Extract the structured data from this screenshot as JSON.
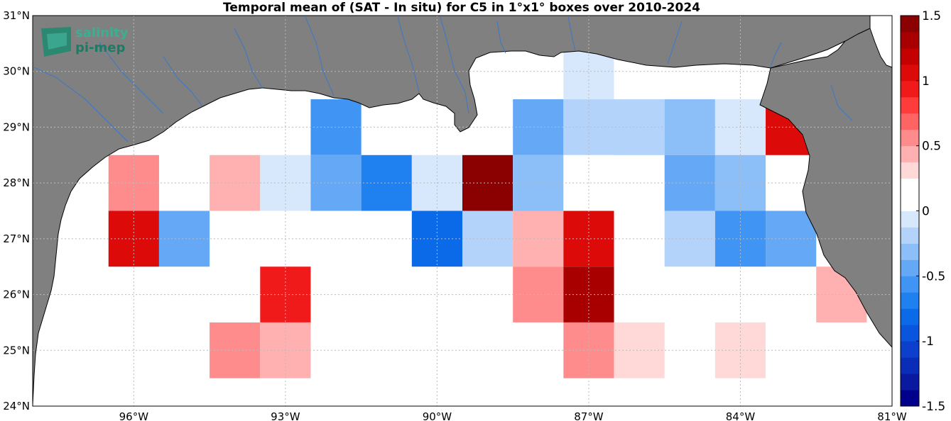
{
  "title": "Temporal mean of (SAT - In situ) for C5 in 1°x1° boxes over 2010-2024",
  "logo": {
    "line1": "salinity",
    "line2": "pi-mep"
  },
  "map": {
    "lon_range": [
      -98,
      -81
    ],
    "lat_range": [
      24,
      31
    ],
    "lon_ticks": [
      -96,
      -93,
      -90,
      -87,
      -84,
      -81
    ],
    "lat_ticks": [
      24,
      25,
      26,
      27,
      28,
      29,
      30,
      31
    ],
    "lon_tick_labels": [
      "96°W",
      "93°W",
      "90°W",
      "87°W",
      "84°W",
      "81°W"
    ],
    "lat_tick_labels": [
      "24°N",
      "25°N",
      "26°N",
      "27°N",
      "28°N",
      "29°N",
      "30°N",
      "31°N"
    ],
    "land_color": "#808080",
    "river_color": "#3a78c8"
  },
  "colorbar": {
    "range": [
      -1.5,
      1.5
    ],
    "tick_values": [
      1.5,
      1,
      0.5,
      0,
      -0.5,
      -1,
      -1.5
    ],
    "tick_labels": [
      "1.5",
      "1",
      "0.5",
      "0",
      "-0.5",
      "-1",
      "-1.5"
    ]
  },
  "chart_data": {
    "type": "heatmap",
    "title": "Temporal mean of (SAT - In situ) for C5 in 1°x1° boxes over 2010-2024",
    "xlabel": "",
    "ylabel": "",
    "xlim": [
      -98,
      -81
    ],
    "ylim": [
      24,
      31
    ],
    "cell_size_deg": 1,
    "cells": [
      {
        "lon": -87,
        "lat": 30,
        "value": -0.1
      },
      {
        "lon": -92,
        "lat": 29,
        "value": -0.6
      },
      {
        "lon": -89,
        "lat": 29,
        "value": 0.15
      },
      {
        "lon": -88,
        "lat": 29,
        "value": -0.5
      },
      {
        "lon": -87,
        "lat": 29,
        "value": -0.25
      },
      {
        "lon": -86,
        "lat": 29,
        "value": -0.25
      },
      {
        "lon": -85,
        "lat": 29,
        "value": -0.3
      },
      {
        "lon": -84,
        "lat": 29,
        "value": -0.1
      },
      {
        "lon": -83,
        "lat": 29,
        "value": 1.05
      },
      {
        "lon": -96,
        "lat": 28,
        "value": 0.55
      },
      {
        "lon": -94,
        "lat": 28,
        "value": 0.4
      },
      {
        "lon": -93,
        "lat": 28,
        "value": -0.1
      },
      {
        "lon": -92,
        "lat": 28,
        "value": -0.4
      },
      {
        "lon": -91,
        "lat": 28,
        "value": -0.65
      },
      {
        "lon": -90,
        "lat": 28,
        "value": -0.1
      },
      {
        "lon": -89,
        "lat": 28,
        "value": 1.5
      },
      {
        "lon": -88,
        "lat": 28,
        "value": -0.35
      },
      {
        "lon": -87,
        "lat": 28,
        "value": 0.15
      },
      {
        "lon": -85,
        "lat": 28,
        "value": -0.5
      },
      {
        "lon": -84,
        "lat": 28,
        "value": -0.35
      },
      {
        "lon": -96,
        "lat": 27,
        "value": 1.05
      },
      {
        "lon": -95,
        "lat": 27,
        "value": -0.4
      },
      {
        "lon": -92,
        "lat": 27,
        "value": 0.15
      },
      {
        "lon": -90,
        "lat": 27,
        "value": -0.8
      },
      {
        "lon": -89,
        "lat": 27,
        "value": -0.15
      },
      {
        "lon": -88,
        "lat": 27,
        "value": 0.45
      },
      {
        "lon": -87,
        "lat": 27,
        "value": 1.05
      },
      {
        "lon": -86,
        "lat": 27,
        "value": 0.15
      },
      {
        "lon": -85,
        "lat": 27,
        "value": -0.15
      },
      {
        "lon": -84,
        "lat": 27,
        "value": -0.55
      },
      {
        "lon": -83,
        "lat": 27,
        "value": -0.45
      },
      {
        "lon": -93,
        "lat": 26,
        "value": 0.9
      },
      {
        "lon": -92,
        "lat": 26,
        "value": 0.15
      },
      {
        "lon": -88,
        "lat": 26,
        "value": 0.6
      },
      {
        "lon": -87,
        "lat": 26,
        "value": 1.3
      },
      {
        "lon": -82,
        "lat": 26,
        "value": 0.45
      },
      {
        "lon": -94,
        "lat": 25,
        "value": 0.6
      },
      {
        "lon": -93,
        "lat": 25,
        "value": 0.45
      },
      {
        "lon": -88,
        "lat": 25,
        "value": 0.15
      },
      {
        "lon": -87,
        "lat": 25,
        "value": 0.6
      },
      {
        "lon": -86,
        "lat": 25,
        "value": 0.3
      },
      {
        "lon": -84,
        "lat": 25,
        "value": 0.3
      },
      {
        "lon": -83,
        "lat": 25,
        "value": 0.15
      }
    ]
  }
}
